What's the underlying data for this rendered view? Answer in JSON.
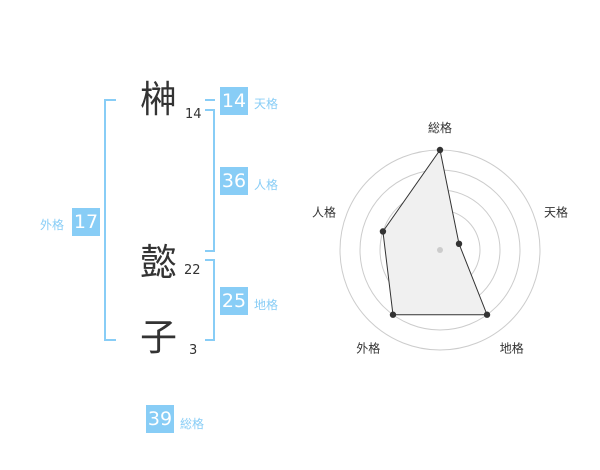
{
  "name": [
    {
      "char": "榊",
      "strokes": "14"
    },
    {
      "char": "懿",
      "strokes": "22"
    },
    {
      "char": "子",
      "strokes": "3"
    }
  ],
  "fortunes": {
    "tenkaku": {
      "label": "天格",
      "value": "14"
    },
    "jinkaku": {
      "label": "人格",
      "value": "36"
    },
    "chikaku": {
      "label": "地格",
      "value": "25"
    },
    "gaikaku": {
      "label": "外格",
      "value": "17"
    },
    "soukaku": {
      "label": "総格",
      "value": "39"
    }
  },
  "colors": {
    "accent": "#88cdf6",
    "polygon_fill": "#f0f0f0",
    "ring": "#cccccc"
  },
  "chart_data": {
    "type": "radar",
    "axes": [
      "総格",
      "天格",
      "地格",
      "外格",
      "人格"
    ],
    "values": [
      5,
      1,
      4,
      4,
      3
    ],
    "range": [
      0,
      5
    ],
    "rings": 5
  }
}
